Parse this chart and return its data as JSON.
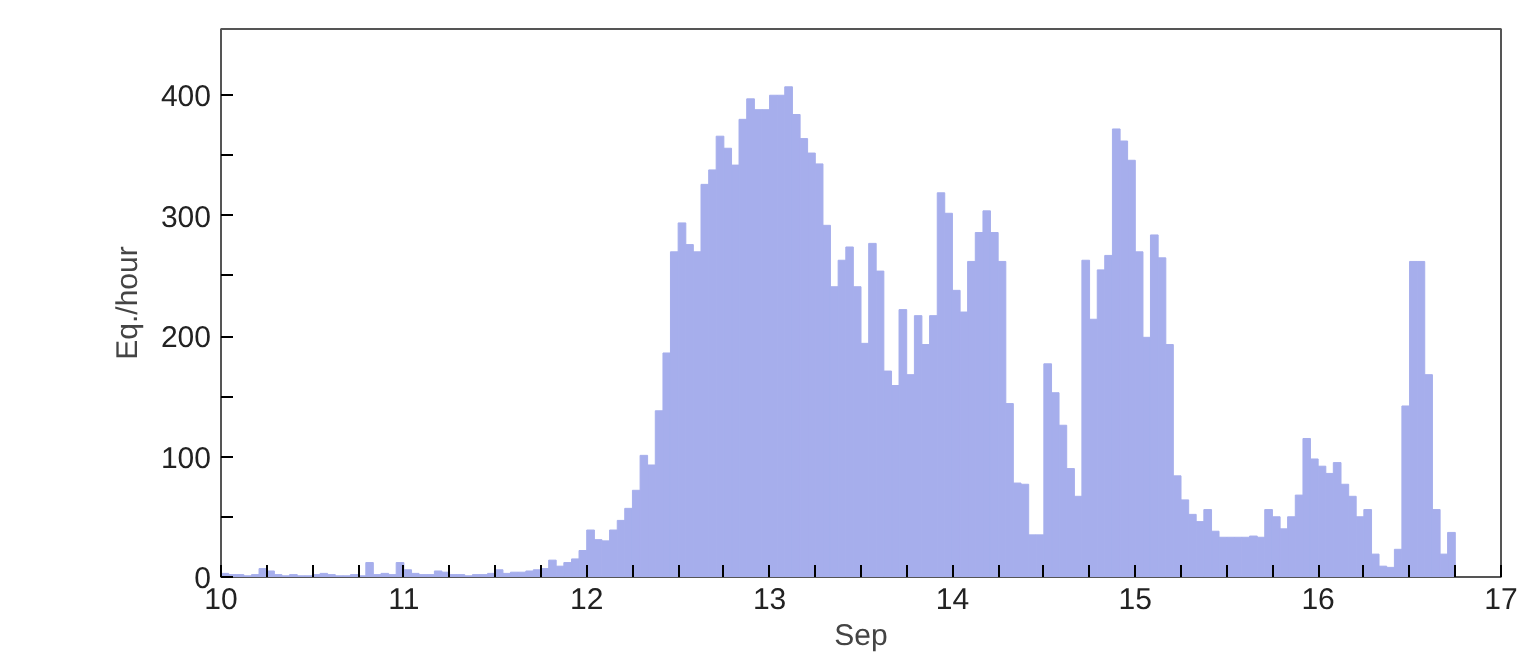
{
  "chart_data": {
    "type": "histogram",
    "xlabel": "Sep",
    "ylabel": "Eq./hour",
    "color": "#a6aeec",
    "bins": [
      10,
      10.042,
      10.083,
      10.125,
      10.167,
      10.208,
      10.25,
      10.292,
      10.333,
      10.375,
      10.417,
      10.458,
      10.5,
      10.542,
      10.583,
      10.625,
      10.667,
      10.708,
      10.75,
      10.792,
      10.833,
      10.875,
      10.917,
      10.958,
      11,
      11.042,
      11.083,
      11.125,
      11.167,
      11.208,
      11.25,
      11.292,
      11.333,
      11.375,
      11.417,
      11.458,
      11.5,
      11.542,
      11.583,
      11.625,
      11.667,
      11.708,
      11.75,
      11.792,
      11.833,
      11.875,
      11.917,
      11.958,
      12,
      12.042,
      12.083,
      12.125,
      12.167,
      12.208,
      12.25,
      12.292,
      12.333,
      12.375,
      12.417,
      12.458,
      12.5,
      12.542,
      12.583,
      12.625,
      12.667,
      12.708,
      12.75,
      12.792,
      12.833,
      12.875,
      12.917,
      12.958,
      13,
      13.042,
      13.083,
      13.125,
      13.167,
      13.208,
      13.25,
      13.292,
      13.333,
      13.375,
      13.417,
      13.458,
      13.5,
      13.542,
      13.583,
      13.625,
      13.667,
      13.708,
      13.75,
      13.792,
      13.833,
      13.875,
      13.917,
      13.958,
      14,
      14.042,
      14.083,
      14.125,
      14.167,
      14.208,
      14.25,
      14.292,
      14.333,
      14.375,
      14.417,
      14.458,
      14.5,
      14.542,
      14.583,
      14.625,
      14.667,
      14.708,
      14.75,
      14.792,
      14.833,
      14.875,
      14.917,
      14.958,
      15,
      15.042,
      15.083,
      15.125,
      15.167,
      15.208,
      15.25,
      15.292,
      15.333,
      15.375,
      15.417,
      15.458,
      15.5,
      15.542,
      15.583,
      15.625,
      15.667,
      15.708,
      15.75,
      15.792,
      15.833,
      15.875,
      15.917,
      15.958,
      16,
      16.042,
      16.083,
      16.125,
      16.167,
      16.208,
      16.25,
      16.292,
      16.333,
      16.375,
      16.417,
      16.458,
      16.5,
      16.542,
      16.583,
      16.625,
      16.667,
      16.708,
      16.75
    ],
    "values": [
      3,
      2,
      2,
      1,
      2,
      7,
      5,
      2,
      1,
      2,
      1,
      1,
      2,
      3,
      2,
      1,
      1,
      2,
      1,
      12,
      2,
      3,
      2,
      12,
      6,
      3,
      2,
      2,
      5,
      4,
      2,
      2,
      1,
      2,
      2,
      3,
      6,
      3,
      4,
      4,
      5,
      6,
      7,
      14,
      9,
      12,
      15,
      22,
      39,
      31,
      30,
      39,
      47,
      57,
      72,
      101,
      93,
      138,
      186,
      270,
      294,
      276,
      270,
      326,
      338,
      366,
      356,
      342,
      380,
      397,
      388,
      388,
      400,
      400,
      407,
      384,
      364,
      352,
      343,
      292,
      241,
      263,
      274,
      241,
      194,
      277,
      254,
      171,
      159,
      222,
      168,
      217,
      193,
      217,
      319,
      302,
      238,
      220,
      262,
      286,
      304,
      286,
      262,
      144,
      78,
      77,
      35,
      35,
      177,
      153,
      126,
      90,
      67,
      263,
      214,
      255,
      267,
      372,
      362,
      346,
      270,
      199,
      284,
      265,
      193,
      84,
      64,
      52,
      46,
      56,
      38,
      33,
      33,
      33,
      33,
      34,
      33,
      56,
      50,
      40,
      50,
      68,
      115,
      98,
      92,
      86,
      95,
      77,
      67,
      50,
      56,
      19,
      9,
      8,
      23,
      142,
      262,
      262,
      168,
      56,
      19,
      37
    ],
    "xlim": [
      10,
      17
    ],
    "xticks": [
      10,
      {
        "value": 10.25,
        "label": null
      },
      {
        "value": 10.5,
        "label": null
      },
      {
        "value": 10.75,
        "label": null
      },
      11,
      {
        "value": 11.25,
        "label": null
      },
      {
        "value": 11.5,
        "label": null
      },
      {
        "value": 11.75,
        "label": null
      },
      12,
      {
        "value": 12.25,
        "label": null
      },
      {
        "value": 12.5,
        "label": null
      },
      {
        "value": 12.75,
        "label": null
      },
      13,
      {
        "value": 13.25,
        "label": null
      },
      {
        "value": 13.5,
        "label": null
      },
      {
        "value": 13.75,
        "label": null
      },
      14,
      {
        "value": 14.25,
        "label": null
      },
      {
        "value": 14.5,
        "label": null
      },
      {
        "value": 14.75,
        "label": null
      },
      15,
      {
        "value": 15.25,
        "label": null
      },
      {
        "value": 15.5,
        "label": null
      },
      {
        "value": 15.75,
        "label": null
      },
      16,
      {
        "value": 16.25,
        "label": null
      },
      {
        "value": 16.5,
        "label": null
      },
      {
        "value": 16.75,
        "label": null
      },
      17
    ],
    "ylim": [
      0,
      455
    ],
    "yticks": [
      0,
      {
        "value": 50,
        "label": null
      },
      100,
      {
        "value": 150,
        "label": null
      },
      200,
      {
        "value": 250,
        "label": null
      },
      300,
      {
        "value": 350,
        "label": null
      },
      400
    ],
    "grid": false
  }
}
